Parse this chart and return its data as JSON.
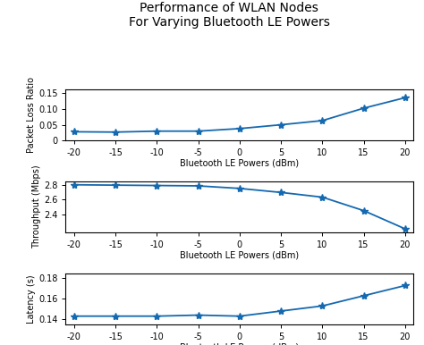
{
  "title_line1": "Performance of WLAN Nodes",
  "title_line2": "For Varying Bluetooth LE Powers",
  "x": [
    -20,
    -15,
    -10,
    -5,
    0,
    5,
    10,
    15,
    20
  ],
  "xlabel": "Bluetooth LE Powers (dBm)",
  "plr_ylabel": "Packet Loss Ratio",
  "plr_values": [
    0.028,
    0.027,
    0.03,
    0.03,
    0.038,
    0.05,
    0.063,
    0.102,
    0.135
  ],
  "plr_ylim": [
    0,
    0.16
  ],
  "plr_yticks": [
    0,
    0.05,
    0.1,
    0.15
  ],
  "tput_ylabel": "Throughput (Mbps)",
  "tput_values": [
    2.805,
    2.8,
    2.795,
    2.79,
    2.755,
    2.7,
    2.635,
    2.45,
    2.2
  ],
  "tput_ylim": [
    2.15,
    2.85
  ],
  "tput_yticks": [
    2.4,
    2.6,
    2.8
  ],
  "lat_ylabel": "Latency (s)",
  "lat_values": [
    0.143,
    0.143,
    0.143,
    0.144,
    0.143,
    0.148,
    0.153,
    0.163,
    0.173
  ],
  "lat_ylim": [
    0.135,
    0.185
  ],
  "lat_yticks": [
    0.14,
    0.16,
    0.18
  ],
  "line_color": "#1469b0",
  "marker": "*",
  "markersize": 6,
  "linewidth": 1.3,
  "title_fontsize": 10,
  "label_fontsize": 7,
  "tick_fontsize": 7
}
